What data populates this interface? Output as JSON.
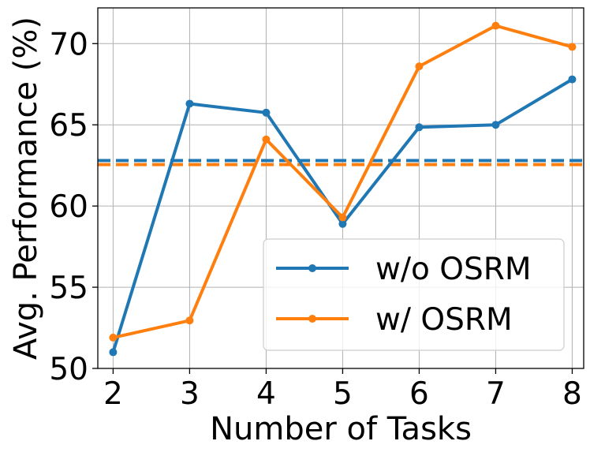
{
  "chart_data": {
    "type": "line",
    "title": "",
    "xlabel": "Number of Tasks",
    "ylabel": "Avg. Performance (%)",
    "x": [
      2,
      3,
      4,
      5,
      6,
      7,
      8
    ],
    "xticks": [
      "2",
      "3",
      "4",
      "5",
      "6",
      "7",
      "8"
    ],
    "yticks": [
      "50",
      "55",
      "60",
      "65",
      "70"
    ],
    "xlim": [
      1.8,
      8.15
    ],
    "ylim": [
      50,
      72.2
    ],
    "grid": true,
    "legend_position": "lower-right",
    "series": [
      {
        "name": "w/o OSRM",
        "color": "#1f77b4",
        "values": [
          51.0,
          66.3,
          65.75,
          58.9,
          64.85,
          65.0,
          67.8
        ],
        "average": 62.8
      },
      {
        "name": "w/ OSRM",
        "color": "#ff7f0e",
        "values": [
          51.9,
          52.95,
          64.1,
          59.3,
          68.6,
          71.1,
          69.8
        ],
        "average": 62.55
      }
    ]
  }
}
